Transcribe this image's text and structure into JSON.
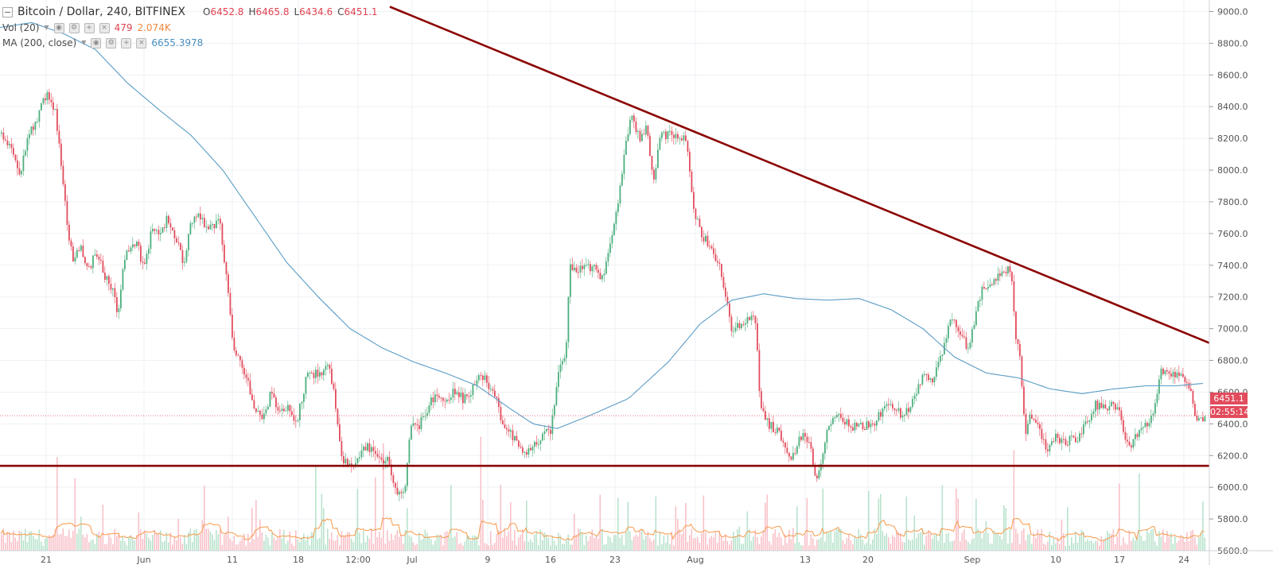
{
  "header": {
    "symbol_title": "Bitcoin / Dollar, 240, BITFINEX",
    "ohlc": [
      {
        "key": "O",
        "value": "6452.8"
      },
      {
        "key": "H",
        "value": "6465.8"
      },
      {
        "key": "L",
        "value": "6434.6"
      },
      {
        "key": "C",
        "value": "6451.1"
      }
    ],
    "volume": {
      "label": "Vol (20)",
      "value": "479",
      "ma_value": "2.074K"
    },
    "ma": {
      "label": "MA (200, close)",
      "value": "6655.3978"
    }
  },
  "price_badge": {
    "last": "6451.1",
    "countdown": "02:55:14"
  },
  "colors": {
    "up": "#4caf7d",
    "down": "#e24c5d",
    "ma": "#5b9cc6",
    "trendline": "#8b0000",
    "vol_ma": "#f79a4a",
    "grid": "#eef1f4",
    "axis_text": "#555555"
  },
  "chart_data": {
    "type": "candlestick",
    "y_axis": {
      "min": 5600,
      "max": 9000,
      "ticks": [
        9000,
        8800,
        8600,
        8400,
        8200,
        8000,
        7800,
        7600,
        7400,
        7200,
        7000,
        6800,
        6600,
        6400,
        6200,
        6000,
        5800,
        5600
      ],
      "position": "right"
    },
    "x_labels": [
      "21",
      "Jun",
      "11",
      "18",
      "12:00",
      "Jul",
      "9",
      "16",
      "23",
      "Aug",
      "13",
      "20",
      "Sep",
      "10",
      "17",
      "24"
    ],
    "x_range": [
      0,
      1520
    ],
    "price_anchors": [
      [
        0,
        8230
      ],
      [
        15,
        8140
      ],
      [
        25,
        7960
      ],
      [
        35,
        8250
      ],
      [
        45,
        8300
      ],
      [
        58,
        8500
      ],
      [
        68,
        8380
      ],
      [
        75,
        8080
      ],
      [
        85,
        7600
      ],
      [
        92,
        7420
      ],
      [
        100,
        7540
      ],
      [
        110,
        7360
      ],
      [
        120,
        7490
      ],
      [
        130,
        7340
      ],
      [
        140,
        7260
      ],
      [
        148,
        7080
      ],
      [
        155,
        7450
      ],
      [
        170,
        7560
      ],
      [
        180,
        7380
      ],
      [
        190,
        7620
      ],
      [
        200,
        7580
      ],
      [
        210,
        7700
      ],
      [
        220,
        7560
      ],
      [
        230,
        7420
      ],
      [
        240,
        7680
      ],
      [
        250,
        7700
      ],
      [
        260,
        7620
      ],
      [
        275,
        7680
      ],
      [
        285,
        7280
      ],
      [
        292,
        6880
      ],
      [
        302,
        6800
      ],
      [
        312,
        6640
      ],
      [
        320,
        6500
      ],
      [
        330,
        6420
      ],
      [
        340,
        6600
      ],
      [
        350,
        6450
      ],
      [
        360,
        6500
      ],
      [
        372,
        6420
      ],
      [
        385,
        6700
      ],
      [
        400,
        6720
      ],
      [
        412,
        6760
      ],
      [
        420,
        6560
      ],
      [
        428,
        6200
      ],
      [
        438,
        6120
      ],
      [
        448,
        6160
      ],
      [
        460,
        6260
      ],
      [
        470,
        6200
      ],
      [
        480,
        6180
      ],
      [
        488,
        6160
      ],
      [
        497,
        5980
      ],
      [
        507,
        5950
      ],
      [
        515,
        6400
      ],
      [
        525,
        6380
      ],
      [
        540,
        6540
      ],
      [
        550,
        6600
      ],
      [
        560,
        6520
      ],
      [
        570,
        6620
      ],
      [
        582,
        6550
      ],
      [
        592,
        6600
      ],
      [
        600,
        6720
      ],
      [
        612,
        6660
      ],
      [
        622,
        6580
      ],
      [
        630,
        6380
      ],
      [
        640,
        6360
      ],
      [
        650,
        6250
      ],
      [
        660,
        6210
      ],
      [
        670,
        6280
      ],
      [
        682,
        6320
      ],
      [
        692,
        6370
      ],
      [
        700,
        6720
      ],
      [
        710,
        6830
      ],
      [
        715,
        7400
      ],
      [
        725,
        7370
      ],
      [
        735,
        7400
      ],
      [
        745,
        7380
      ],
      [
        755,
        7300
      ],
      [
        765,
        7500
      ],
      [
        775,
        7760
      ],
      [
        785,
        8150
      ],
      [
        793,
        8380
      ],
      [
        802,
        8200
      ],
      [
        812,
        8280
      ],
      [
        820,
        7920
      ],
      [
        828,
        8200
      ],
      [
        840,
        8230
      ],
      [
        850,
        8210
      ],
      [
        862,
        8180
      ],
      [
        870,
        7780
      ],
      [
        880,
        7600
      ],
      [
        892,
        7520
      ],
      [
        902,
        7420
      ],
      [
        912,
        7180
      ],
      [
        918,
        6980
      ],
      [
        930,
        7040
      ],
      [
        940,
        7050
      ],
      [
        948,
        7100
      ],
      [
        955,
        6500
      ],
      [
        965,
        6400
      ],
      [
        975,
        6360
      ],
      [
        985,
        6280
      ],
      [
        995,
        6180
      ],
      [
        1005,
        6320
      ],
      [
        1015,
        6300
      ],
      [
        1025,
        6060
      ],
      [
        1030,
        6100
      ],
      [
        1040,
        6380
      ],
      [
        1055,
        6450
      ],
      [
        1070,
        6380
      ],
      [
        1085,
        6380
      ],
      [
        1100,
        6420
      ],
      [
        1112,
        6510
      ],
      [
        1125,
        6500
      ],
      [
        1135,
        6440
      ],
      [
        1145,
        6540
      ],
      [
        1160,
        6700
      ],
      [
        1170,
        6660
      ],
      [
        1180,
        6780
      ],
      [
        1188,
        6940
      ],
      [
        1195,
        7080
      ],
      [
        1205,
        6980
      ],
      [
        1215,
        6880
      ],
      [
        1222,
        7000
      ],
      [
        1232,
        7230
      ],
      [
        1245,
        7280
      ],
      [
        1258,
        7340
      ],
      [
        1270,
        7380
      ],
      [
        1275,
        6950
      ],
      [
        1282,
        6800
      ],
      [
        1287,
        6340
      ],
      [
        1295,
        6460
      ],
      [
        1305,
        6400
      ],
      [
        1315,
        6200
      ],
      [
        1325,
        6340
      ],
      [
        1335,
        6280
      ],
      [
        1345,
        6300
      ],
      [
        1355,
        6320
      ],
      [
        1365,
        6400
      ],
      [
        1375,
        6520
      ],
      [
        1385,
        6500
      ],
      [
        1395,
        6520
      ],
      [
        1405,
        6480
      ],
      [
        1413,
        6320
      ],
      [
        1422,
        6270
      ],
      [
        1432,
        6370
      ],
      [
        1442,
        6400
      ],
      [
        1452,
        6520
      ],
      [
        1458,
        6740
      ],
      [
        1468,
        6720
      ],
      [
        1478,
        6720
      ],
      [
        1488,
        6660
      ],
      [
        1495,
        6620
      ],
      [
        1503,
        6400
      ],
      [
        1510,
        6420
      ],
      [
        1515,
        6451
      ]
    ],
    "ma_anchors": [
      [
        0,
        8900
      ],
      [
        40,
        8930
      ],
      [
        80,
        8860
      ],
      [
        120,
        8760
      ],
      [
        160,
        8550
      ],
      [
        200,
        8380
      ],
      [
        240,
        8220
      ],
      [
        280,
        8000
      ],
      [
        320,
        7710
      ],
      [
        360,
        7420
      ],
      [
        400,
        7200
      ],
      [
        440,
        7000
      ],
      [
        480,
        6880
      ],
      [
        520,
        6790
      ],
      [
        560,
        6720
      ],
      [
        600,
        6640
      ],
      [
        640,
        6500
      ],
      [
        670,
        6400
      ],
      [
        700,
        6370
      ],
      [
        740,
        6450
      ],
      [
        790,
        6560
      ],
      [
        840,
        6790
      ],
      [
        880,
        7030
      ],
      [
        920,
        7180
      ],
      [
        960,
        7220
      ],
      [
        1000,
        7190
      ],
      [
        1040,
        7180
      ],
      [
        1080,
        7190
      ],
      [
        1120,
        7120
      ],
      [
        1160,
        7000
      ],
      [
        1200,
        6820
      ],
      [
        1240,
        6720
      ],
      [
        1280,
        6690
      ],
      [
        1320,
        6620
      ],
      [
        1360,
        6590
      ],
      [
        1400,
        6620
      ],
      [
        1440,
        6640
      ],
      [
        1480,
        6640
      ],
      [
        1512,
        6655
      ]
    ],
    "trendline_down": {
      "start": [
        490,
        9030
      ],
      "end": [
        1520,
        6910
      ]
    },
    "support_line": {
      "value": 6135
    },
    "last_price": 6451.1,
    "volume_series": {
      "label": "Vol (20)",
      "last": 479,
      "ma_last": "2.074K"
    },
    "grid": true,
    "legend_position": "top-left"
  }
}
